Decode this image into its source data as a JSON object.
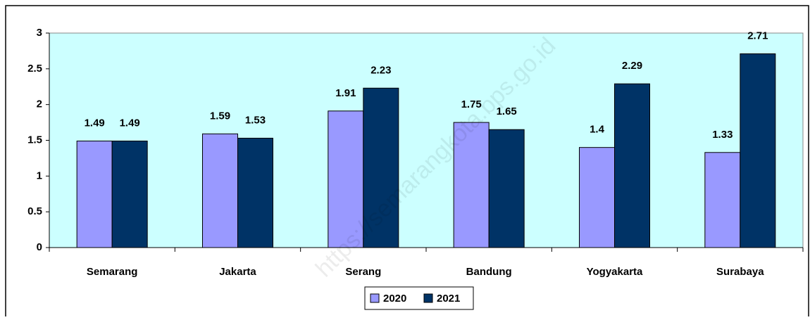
{
  "chart_data": {
    "type": "bar",
    "categories": [
      "Semarang",
      "Jakarta",
      "Serang",
      "Bandung",
      "Yogyakarta",
      "Surabaya"
    ],
    "series": [
      {
        "name": "2020",
        "color": "#9999ff",
        "values": [
          1.49,
          1.59,
          1.91,
          1.75,
          1.4,
          1.33
        ]
      },
      {
        "name": "2021",
        "color": "#003366",
        "values": [
          1.49,
          1.53,
          2.23,
          1.65,
          2.29,
          2.71
        ]
      }
    ],
    "ylim": [
      0,
      3
    ],
    "yticks": [
      0,
      0.5,
      1,
      1.5,
      2,
      2.5,
      3
    ],
    "plot_background": "#ccffff",
    "legend": "bottom",
    "watermark": "https://semarangkota.bps.go.id"
  }
}
